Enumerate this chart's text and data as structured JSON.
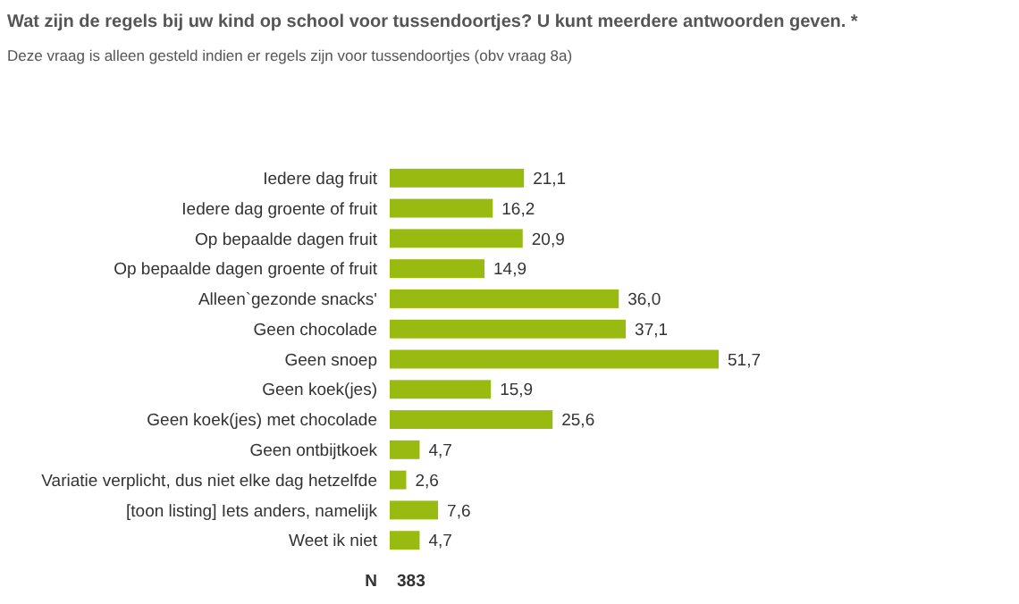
{
  "chart_data": {
    "type": "bar",
    "orientation": "horizontal",
    "title": "Wat zijn de regels bij uw kind op school voor tussendoortjes? U kunt meerdere antwoorden geven. *",
    "subtitle": "Deze vraag is alleen gesteld indien er regels zijn voor tussendoortjes (obv vraag 8a)",
    "categories": [
      "Iedere dag fruit",
      "Iedere dag groente of fruit",
      "Op bepaalde dagen fruit",
      "Op bepaalde dagen groente of fruit",
      "Alleen`gezonde snacks'",
      "Geen chocolade",
      "Geen snoep",
      "Geen koek(jes)",
      "Geen koek(jes) met chocolade",
      "Geen ontbijtkoek",
      "Variatie verplicht, dus niet elke dag hetzelfde",
      "[toon listing] Iets anders, namelijk",
      "Weet ik niet"
    ],
    "values": [
      21.1,
      16.2,
      20.9,
      14.9,
      36.0,
      37.1,
      51.7,
      15.9,
      25.6,
      4.7,
      2.6,
      7.6,
      4.7
    ],
    "value_labels": [
      "21,1",
      "16,2",
      "20,9",
      "14,9",
      "36,0",
      "37,1",
      "51,7",
      "15,9",
      "25,6",
      "4,7",
      "2,6",
      "7,6",
      "4,7"
    ],
    "color": "#99bb11",
    "annotations": [
      "N",
      "383"
    ]
  }
}
